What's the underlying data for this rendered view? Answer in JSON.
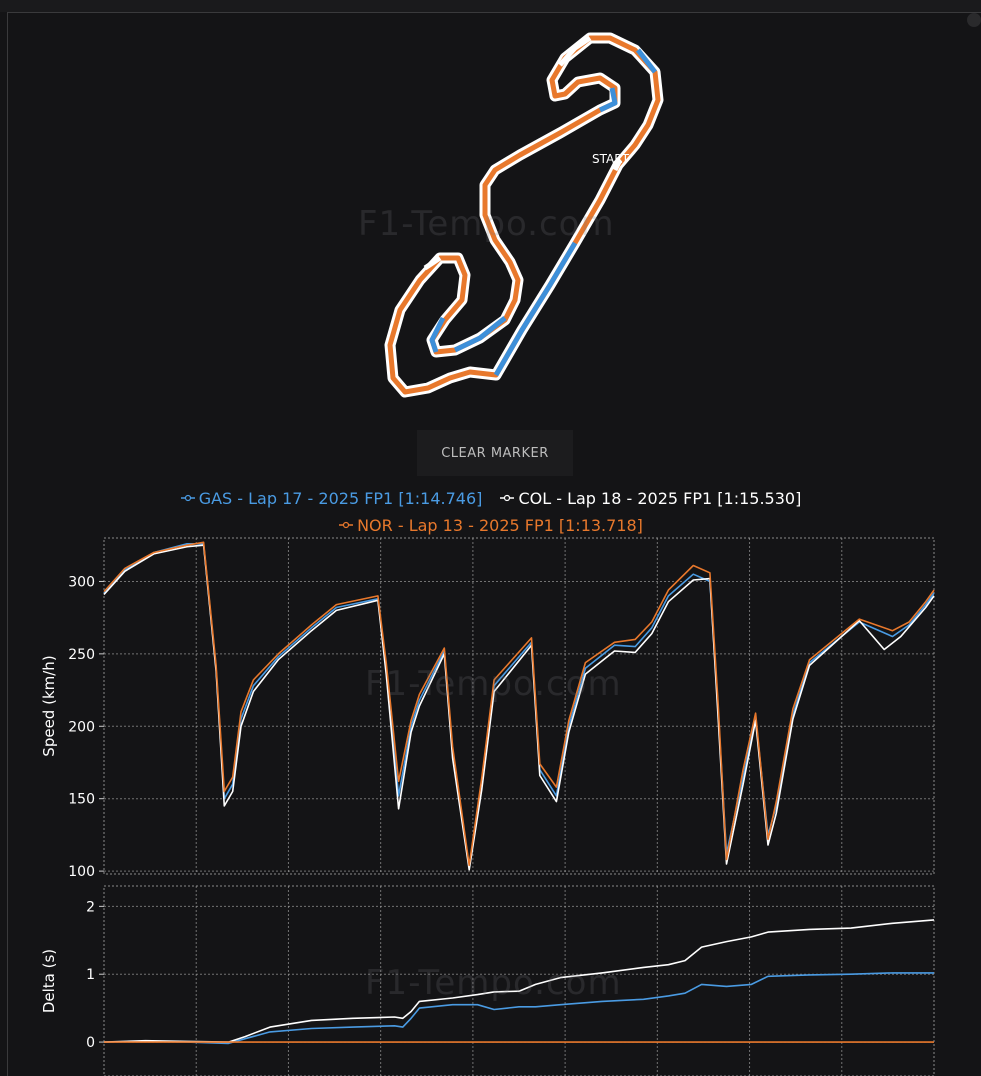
{
  "watermark": "F1-Tempo.com",
  "track_map": {
    "start_label": "START",
    "colors": {
      "outline": "#ffffff",
      "nor": "#e8782c",
      "gas": "#3d8fd9"
    }
  },
  "clear_marker_label": "CLEAR MARKER",
  "legend": [
    {
      "label": "GAS - Lap 17 - 2025 FP1 [1:14.746]",
      "color": "#4a9be3"
    },
    {
      "label": "COL - Lap 18 - 2025 FP1 [1:15.530]",
      "color": "#ffffff"
    },
    {
      "label": "NOR - Lap 13 - 2025 FP1 [1:13.718]",
      "color": "#e8782c"
    }
  ],
  "chart_data": [
    {
      "type": "line",
      "ylabel": "Speed (km/h)",
      "ylim": [
        98,
        330
      ],
      "yticks": [
        100,
        150,
        200,
        250,
        300
      ],
      "xlim": [
        0,
        1
      ],
      "grid": true,
      "series": [
        {
          "name": "GAS",
          "color": "#4a9be3",
          "x": [
            0,
            0.025,
            0.06,
            0.1,
            0.12,
            0.135,
            0.145,
            0.155,
            0.165,
            0.18,
            0.21,
            0.25,
            0.28,
            0.33,
            0.34,
            0.355,
            0.37,
            0.38,
            0.41,
            0.42,
            0.44,
            0.455,
            0.47,
            0.515,
            0.525,
            0.545,
            0.56,
            0.58,
            0.615,
            0.64,
            0.66,
            0.68,
            0.71,
            0.73,
            0.74,
            0.75,
            0.77,
            0.785,
            0.8,
            0.81,
            0.83,
            0.85,
            0.91,
            0.95,
            0.97,
            0.99,
            1.0
          ],
          "y": [
            292,
            308,
            320,
            326,
            326,
            240,
            150,
            160,
            205,
            228,
            248,
            268,
            282,
            288,
            240,
            152,
            200,
            218,
            252,
            182,
            103,
            160,
            228,
            258,
            170,
            152,
            200,
            240,
            256,
            255,
            268,
            290,
            305,
            300,
            210,
            112,
            165,
            206,
            125,
            145,
            208,
            244,
            272,
            262,
            270,
            284,
            292
          ]
        },
        {
          "name": "COL",
          "color": "#ffffff",
          "x": [
            0,
            0.025,
            0.06,
            0.1,
            0.12,
            0.135,
            0.145,
            0.155,
            0.165,
            0.18,
            0.21,
            0.25,
            0.28,
            0.33,
            0.34,
            0.355,
            0.37,
            0.38,
            0.41,
            0.42,
            0.44,
            0.455,
            0.47,
            0.515,
            0.525,
            0.545,
            0.56,
            0.58,
            0.615,
            0.64,
            0.66,
            0.68,
            0.71,
            0.73,
            0.74,
            0.75,
            0.77,
            0.785,
            0.8,
            0.81,
            0.83,
            0.85,
            0.91,
            0.94,
            0.96,
            0.99,
            1.0
          ],
          "y": [
            291,
            307,
            319,
            324,
            325,
            238,
            145,
            155,
            200,
            224,
            246,
            266,
            280,
            287,
            236,
            143,
            196,
            214,
            250,
            178,
            101,
            156,
            224,
            256,
            166,
            148,
            196,
            236,
            252,
            251,
            264,
            286,
            301,
            302,
            205,
            105,
            160,
            204,
            118,
            140,
            205,
            242,
            273,
            253,
            262,
            282,
            290
          ]
        },
        {
          "name": "NOR",
          "color": "#e8782c",
          "x": [
            0,
            0.025,
            0.06,
            0.1,
            0.12,
            0.135,
            0.145,
            0.155,
            0.165,
            0.18,
            0.21,
            0.25,
            0.28,
            0.33,
            0.34,
            0.355,
            0.37,
            0.38,
            0.41,
            0.42,
            0.44,
            0.455,
            0.47,
            0.515,
            0.525,
            0.545,
            0.56,
            0.58,
            0.615,
            0.64,
            0.66,
            0.68,
            0.71,
            0.73,
            0.74,
            0.75,
            0.77,
            0.785,
            0.8,
            0.81,
            0.83,
            0.85,
            0.91,
            0.95,
            0.97,
            0.99,
            1.0
          ],
          "y": [
            293,
            309,
            320,
            325,
            327,
            242,
            155,
            165,
            210,
            232,
            250,
            270,
            284,
            290,
            244,
            162,
            204,
            222,
            254,
            186,
            104,
            164,
            232,
            261,
            174,
            158,
            204,
            244,
            258,
            260,
            272,
            294,
            311,
            306,
            215,
            108,
            170,
            209,
            122,
            148,
            212,
            246,
            274,
            266,
            272,
            286,
            294
          ]
        }
      ]
    },
    {
      "type": "line",
      "ylabel": "Delta (s)",
      "ylim": [
        -0.5,
        2.3
      ],
      "yticks": [
        0,
        1,
        2
      ],
      "xlim": [
        0,
        1
      ],
      "grid": true,
      "series": [
        {
          "name": "GAS",
          "color": "#4a9be3",
          "x": [
            0,
            0.05,
            0.1,
            0.15,
            0.17,
            0.2,
            0.25,
            0.3,
            0.35,
            0.36,
            0.37,
            0.38,
            0.42,
            0.45,
            0.47,
            0.5,
            0.52,
            0.55,
            0.6,
            0.65,
            0.68,
            0.7,
            0.72,
            0.75,
            0.78,
            0.8,
            0.85,
            0.9,
            0.95,
            1.0
          ],
          "y": [
            0,
            0.01,
            0.0,
            -0.02,
            0.05,
            0.15,
            0.2,
            0.22,
            0.24,
            0.22,
            0.35,
            0.5,
            0.55,
            0.55,
            0.48,
            0.52,
            0.52,
            0.55,
            0.6,
            0.63,
            0.68,
            0.72,
            0.85,
            0.82,
            0.85,
            0.97,
            0.99,
            1.0,
            1.02,
            1.02
          ]
        },
        {
          "name": "COL",
          "color": "#ffffff",
          "x": [
            0,
            0.05,
            0.1,
            0.15,
            0.17,
            0.2,
            0.25,
            0.3,
            0.35,
            0.36,
            0.37,
            0.38,
            0.42,
            0.45,
            0.47,
            0.5,
            0.52,
            0.55,
            0.6,
            0.65,
            0.68,
            0.7,
            0.72,
            0.75,
            0.78,
            0.8,
            0.85,
            0.9,
            0.95,
            1.0
          ],
          "y": [
            0,
            0.02,
            0.01,
            0.0,
            0.08,
            0.22,
            0.32,
            0.35,
            0.37,
            0.35,
            0.45,
            0.6,
            0.65,
            0.7,
            0.74,
            0.75,
            0.85,
            0.95,
            1.02,
            1.1,
            1.14,
            1.2,
            1.4,
            1.48,
            1.55,
            1.62,
            1.66,
            1.68,
            1.75,
            1.8
          ]
        },
        {
          "name": "NOR",
          "color": "#e8782c",
          "x": [
            0,
            1.0
          ],
          "y": [
            0,
            0
          ]
        }
      ]
    }
  ]
}
